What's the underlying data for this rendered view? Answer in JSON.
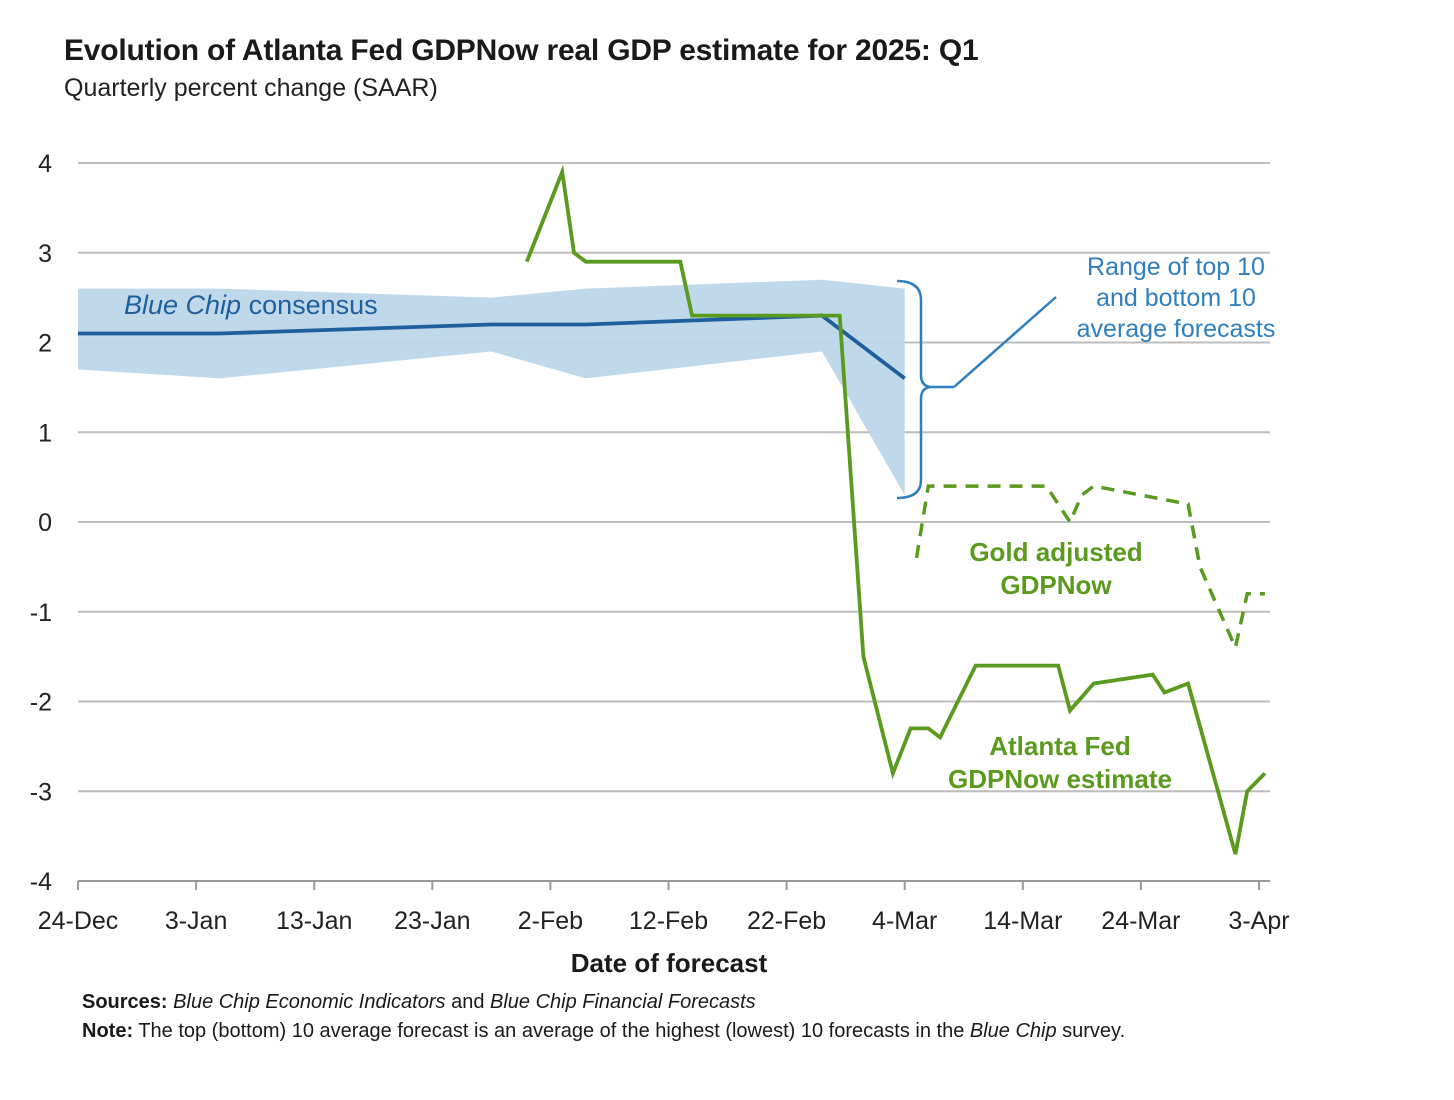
{
  "chart_data": {
    "type": "line",
    "title": "Evolution of Atlanta Fed GDPNow real GDP estimate for 2025: Q1",
    "subtitle": "Quarterly percent change (SAAR)",
    "xlabel": "Date of forecast",
    "ylabel": "",
    "ylim": [
      -4,
      4
    ],
    "x_unit": "days since 24-Dec",
    "xlim": [
      0,
      100.5
    ],
    "y_ticks": [
      "4",
      "3",
      "2",
      "1",
      "0",
      "-1",
      "-2",
      "-3",
      "-4"
    ],
    "y_tick_values": [
      4,
      3,
      2,
      1,
      0,
      -1,
      -2,
      -3,
      -4
    ],
    "x_ticks": [
      "24-Dec",
      "3-Jan",
      "13-Jan",
      "23-Jan",
      "2-Feb",
      "12-Feb",
      "22-Feb",
      "4-Mar",
      "14-Mar",
      "24-Mar",
      "3-Apr"
    ],
    "x_tick_values": [
      0,
      10,
      20,
      30,
      40,
      50,
      60,
      70,
      80,
      90,
      100
    ],
    "grid": true,
    "colors": {
      "blue": "#1f5f9e",
      "band": "#bcd7ea",
      "green": "#5a9a1e",
      "bracket": "#2f7fc0",
      "grid": "#bdbdbd"
    },
    "band": {
      "name": "Range of top 10 and bottom 10 average forecasts",
      "x": [
        0,
        12,
        35,
        43,
        63,
        70
      ],
      "upper": [
        2.6,
        2.6,
        2.5,
        2.6,
        2.7,
        2.6
      ],
      "lower": [
        1.7,
        1.6,
        1.9,
        1.6,
        1.9,
        0.3
      ]
    },
    "series": [
      {
        "name": "Blue Chip consensus",
        "style": "solid",
        "color": "#1f5f9e",
        "x": [
          0,
          12,
          35,
          43,
          63,
          70
        ],
        "y": [
          2.1,
          2.1,
          2.2,
          2.2,
          2.3,
          1.6
        ]
      },
      {
        "name": "Atlanta Fed GDPNow estimate",
        "style": "solid",
        "color": "#5a9a1e",
        "x": [
          38,
          41,
          42,
          43,
          51,
          52,
          63,
          64.5,
          66.5,
          69,
          70.5,
          72,
          73,
          76,
          79,
          83,
          84,
          86,
          91,
          92,
          94,
          98,
          99,
          100.5
        ],
        "y": [
          2.9,
          3.9,
          3.0,
          2.9,
          2.9,
          2.3,
          2.3,
          2.3,
          -1.5,
          -2.8,
          -2.3,
          -2.3,
          -2.4,
          -1.6,
          -1.6,
          -1.6,
          -2.1,
          -1.8,
          -1.7,
          -1.9,
          -1.8,
          -3.7,
          -3.0,
          -2.8
        ]
      },
      {
        "name": "Gold adjusted GDPNow",
        "style": "dashed",
        "color": "#5a9a1e",
        "x": [
          71,
          72,
          79,
          82,
          84,
          85,
          86,
          94,
          95,
          98,
          99,
          100.5
        ],
        "y": [
          -0.4,
          0.4,
          0.4,
          0.4,
          0.0,
          0.3,
          0.4,
          0.2,
          -0.5,
          -1.4,
          -0.8,
          -0.8
        ]
      }
    ],
    "annotations": {
      "blue_chip_italic": "Blue Chip",
      "blue_chip_rest": " consensus",
      "range_line1": "Range of top 10",
      "range_line2": "and bottom 10",
      "range_line3": "average forecasts",
      "gold_line1": "Gold adjusted",
      "gold_line2": "GDPNow",
      "atl_line1": "Atlanta Fed",
      "atl_line2": "GDPNow estimate"
    }
  },
  "footer": {
    "sources_label": "Sources:",
    "sources_pub1": "Blue Chip Economic Indicators",
    "sources_and": " and ",
    "sources_pub2": "Blue Chip Financial Forecasts",
    "note_label": "Note:",
    "note_text": " The top (bottom) 10 average forecast is an average of the highest (lowest) 10 forecasts in the ",
    "note_italic": "Blue Chip",
    "note_end": " survey."
  }
}
